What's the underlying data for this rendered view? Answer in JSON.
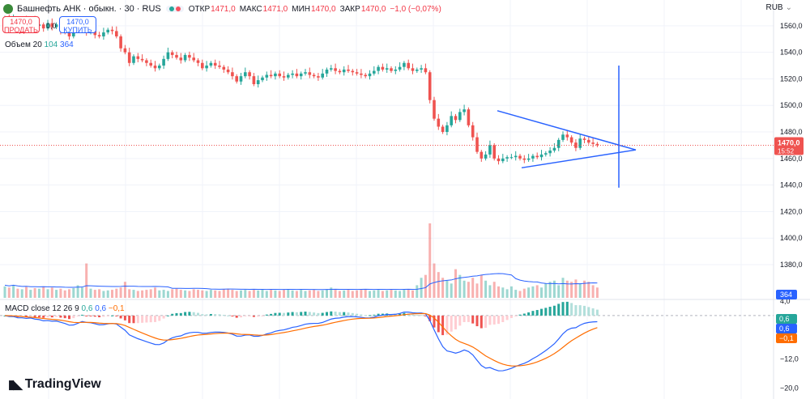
{
  "header": {
    "title": "Башнефть АНК · обыкн. · 30 · RUS",
    "open_label": "ОТКР",
    "open": "1471,0",
    "high_label": "МАКС",
    "high": "1471,0",
    "low_label": "МИН",
    "low": "1470,0",
    "close_label": "ЗАКР",
    "close": "1470,0",
    "change": "−1,0 (−0,07%)"
  },
  "currency": "RUB",
  "trade": {
    "sell_price": "1470,0",
    "sell_label": "ПРОДАТЬ",
    "spread": "0,0",
    "buy_price": "1470,0",
    "buy_label": "КУПИТЬ"
  },
  "volume_legend": {
    "label": "Объем 20",
    "v1": "104",
    "v2": "364"
  },
  "macd_legend": {
    "label": "MACD close 12 26 9",
    "v0": "0,6",
    "v1": "0,6",
    "v2": "−0,1"
  },
  "brand": "TradingView",
  "colors": {
    "up": "#26a69a",
    "down": "#ef5350",
    "pattern": "#2962ff",
    "macd": "#2962ff",
    "signal": "#ff6d00"
  },
  "chart_data": {
    "type": "candlestick",
    "price_axis": {
      "labels": [
        "1560,0",
        "1540,0",
        "1520,0",
        "1500,0",
        "1480,0",
        "1460,0",
        "1440,0",
        "1420,0",
        "1400,0",
        "1380,0"
      ],
      "ylim": [
        1375,
        1566
      ]
    },
    "price_closes": [
      1566,
      1563,
      1565,
      1561,
      1564,
      1562,
      1565,
      1560,
      1561,
      1558,
      1562,
      1559,
      1561,
      1556,
      1555,
      1552,
      1557,
      1562,
      1563,
      1555,
      1556,
      1553,
      1552,
      1555,
      1557,
      1556,
      1552,
      1543,
      1540,
      1532,
      1537,
      1535,
      1534,
      1532,
      1530,
      1528,
      1530,
      1535,
      1540,
      1538,
      1536,
      1534,
      1538,
      1536,
      1534,
      1532,
      1528,
      1530,
      1532,
      1530,
      1529,
      1527,
      1525,
      1522,
      1518,
      1522,
      1525,
      1522,
      1516,
      1519,
      1521,
      1523,
      1522,
      1524,
      1522,
      1521,
      1523,
      1524,
      1522,
      1524,
      1525,
      1523,
      1522,
      1521,
      1524,
      1527,
      1528,
      1526,
      1525,
      1527,
      1526,
      1525,
      1524,
      1523,
      1522,
      1524,
      1526,
      1529,
      1527,
      1528,
      1526,
      1527,
      1529,
      1532,
      1528,
      1526,
      1527,
      1528,
      1525,
      1504,
      1490,
      1484,
      1480,
      1485,
      1492,
      1489,
      1495,
      1497,
      1485,
      1476,
      1465,
      1460,
      1463,
      1470,
      1460,
      1458,
      1460,
      1461,
      1461,
      1462,
      1460,
      1459,
      1460,
      1462,
      1461,
      1463,
      1464,
      1466,
      1468,
      1474,
      1478,
      1476,
      1472,
      1468,
      1475,
      1474,
      1472,
      1471,
      1470
    ],
    "last_price": "1470,0",
    "countdown": "15:52",
    "volume_scale_label": "364",
    "volume": [
      20,
      18,
      22,
      16,
      15,
      19,
      14,
      17,
      16,
      20,
      15,
      18,
      14,
      16,
      13,
      15,
      17,
      22,
      18,
      60,
      16,
      14,
      15,
      12,
      13,
      14,
      16,
      18,
      28,
      15,
      14,
      12,
      13,
      14,
      15,
      18,
      13,
      14,
      12,
      15,
      16,
      14,
      13,
      12,
      15,
      14,
      13,
      12,
      14,
      13,
      12,
      15,
      16,
      14,
      12,
      13,
      14,
      12,
      14,
      13,
      15,
      12,
      14,
      13,
      12,
      14,
      15,
      13,
      12,
      14,
      12,
      13,
      14,
      12,
      13,
      15,
      18,
      14,
      12,
      13,
      14,
      12,
      13,
      14,
      15,
      12,
      13,
      14,
      12,
      13,
      14,
      13,
      12,
      14,
      15,
      13,
      22,
      35,
      40,
      130,
      60,
      45,
      35,
      30,
      25,
      50,
      40,
      30,
      28,
      35,
      25,
      40,
      30,
      22,
      28,
      20,
      18,
      15,
      20,
      14,
      12,
      16,
      18,
      20,
      22,
      18,
      25,
      28,
      30,
      22,
      35,
      30,
      28,
      32,
      25,
      30,
      28,
      22,
      18
    ],
    "macd_axis": {
      "labels": [
        "4,0",
        "−4,0",
        "−12,0",
        "−20,0"
      ],
      "ylim": [
        -21,
        4
      ]
    },
    "macd_values": {
      "macd": "0,6",
      "signal": "−0,1",
      "hist": "0,6"
    }
  }
}
